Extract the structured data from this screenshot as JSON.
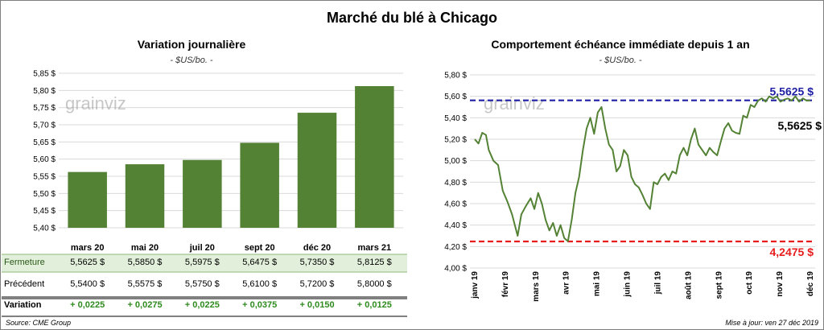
{
  "title": "Marché du blé à Chicago",
  "source": "Source: CME Group",
  "updated": "Mise à jour: ven 27 déc 2019",
  "watermark": "grainviz",
  "colors": {
    "bar": "#548235",
    "line": "#548235",
    "high_line": "#1f1fa5",
    "low_line": "#e81c1c",
    "close_row_bg": "#e2efda",
    "positive": "#2e8b1e",
    "last_label": "#000000"
  },
  "chart_data": [
    {
      "type": "bar",
      "title": "Variation journalière",
      "subtitle": "- $US/bo. -",
      "categories": [
        "mars 20",
        "mai 20",
        "juil 20",
        "sept 20",
        "déc 20",
        "mars 21"
      ],
      "values": [
        5.5625,
        5.585,
        5.5975,
        5.6475,
        5.735,
        5.8125
      ],
      "ylim": [
        5.4,
        5.85
      ],
      "yticks": [
        "5,40 $",
        "5,45 $",
        "5,50 $",
        "5,55 $",
        "5,60 $",
        "5,65 $",
        "5,70 $",
        "5,75 $",
        "5,80 $",
        "5,85 $"
      ],
      "grid": true,
      "table": {
        "rows": [
          {
            "label": "Fermeture",
            "values": [
              "5,5625  $",
              "5,5850  $",
              "5,5975  $",
              "5,6475  $",
              "5,7350  $",
              "5,8125  $"
            ]
          },
          {
            "label": "Précédent",
            "values": [
              "5,5400  $",
              "5,5575  $",
              "5,5750  $",
              "5,6100  $",
              "5,7200  $",
              "5,8000  $"
            ]
          },
          {
            "label": "Variation",
            "values": [
              "+ 0,0225",
              "+ 0,0275",
              "+ 0,0225",
              "+ 0,0375",
              "+ 0,0150",
              "+ 0,0125"
            ]
          }
        ]
      }
    },
    {
      "type": "line",
      "title": "Comportement  échéance immédiate depuis 1 an",
      "subtitle": "- $US/bo. -",
      "ylim": [
        4.0,
        5.8
      ],
      "yticks": [
        "4,00 $",
        "4,20 $",
        "4,40 $",
        "4,60 $",
        "4,80 $",
        "5,00 $",
        "5,20 $",
        "5,40 $",
        "5,60 $",
        "5,80 $"
      ],
      "x_labels": [
        "janv 19",
        "févr 19",
        "mars 19",
        "avr 19",
        "mai 19",
        "juin 19",
        "juil 19",
        "août 19",
        "sept 19",
        "oct 19",
        "nov 19",
        "déc 19"
      ],
      "x_domain": [
        0,
        360
      ],
      "x": [
        0,
        4,
        8,
        12,
        15,
        20,
        25,
        30,
        35,
        40,
        43,
        46,
        50,
        55,
        60,
        64,
        68,
        72,
        76,
        80,
        84,
        88,
        92,
        96,
        100,
        104,
        108,
        112,
        116,
        120,
        124,
        128,
        132,
        136,
        140,
        144,
        148,
        152,
        156,
        160,
        164,
        168,
        172,
        176,
        180,
        184,
        188,
        192,
        196,
        200,
        204,
        208,
        212,
        216,
        220,
        224,
        228,
        232,
        236,
        240,
        244,
        248,
        252,
        256,
        260,
        264,
        268,
        272,
        276,
        280,
        284,
        288,
        292,
        296,
        300,
        304,
        308,
        312,
        316,
        320,
        324,
        328,
        332,
        336,
        340,
        344,
        348,
        352,
        356,
        360
      ],
      "y": [
        5.2,
        5.16,
        5.26,
        5.24,
        5.1,
        5.0,
        4.96,
        4.72,
        4.62,
        4.5,
        4.4,
        4.3,
        4.5,
        4.58,
        4.65,
        4.55,
        4.7,
        4.6,
        4.45,
        4.35,
        4.42,
        4.3,
        4.4,
        4.28,
        4.25,
        4.45,
        4.7,
        4.85,
        5.1,
        5.3,
        5.4,
        5.25,
        5.45,
        5.5,
        5.3,
        5.15,
        5.1,
        4.9,
        4.95,
        5.1,
        5.05,
        4.85,
        4.78,
        4.75,
        4.68,
        4.6,
        4.55,
        4.8,
        4.78,
        4.85,
        4.88,
        4.82,
        4.9,
        4.88,
        5.05,
        5.12,
        5.05,
        5.2,
        5.3,
        5.15,
        5.1,
        5.05,
        5.12,
        5.08,
        5.05,
        5.18,
        5.3,
        5.35,
        5.28,
        5.26,
        5.25,
        5.42,
        5.4,
        5.52,
        5.5,
        5.56,
        5.58,
        5.55,
        5.6,
        5.58,
        5.6,
        5.55,
        5.57,
        5.58,
        5.56,
        5.6,
        5.55,
        5.58,
        5.56,
        5.5625
      ],
      "high": {
        "value": 5.5625,
        "label": "5,5625  $"
      },
      "low": {
        "value": 4.2475,
        "label": "4,2475  $"
      },
      "last": {
        "value": 5.5625,
        "label": "5,5625 $"
      },
      "grid": true
    }
  ]
}
